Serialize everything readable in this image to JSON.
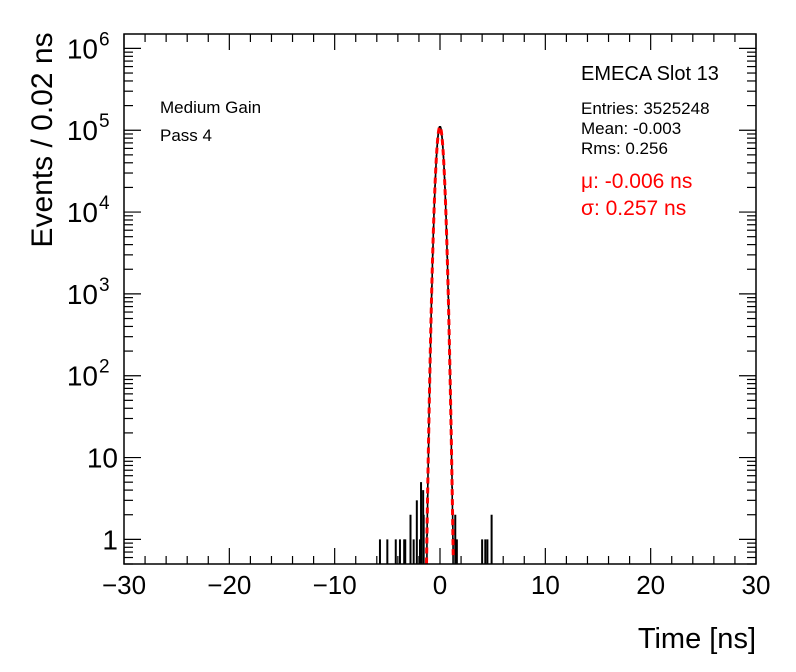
{
  "chart_data": {
    "type": "histogram",
    "title": "",
    "xlabel": "Time [ns]",
    "ylabel": "Events / 0.02 ns",
    "xlim": [
      -30,
      30
    ],
    "ylim": [
      0.5,
      1500000
    ],
    "yscale": "log",
    "bin_width": 0.02,
    "grid": false,
    "x_ticks": [
      {
        "value": -30,
        "label": "−30"
      },
      {
        "value": -20,
        "label": "−20"
      },
      {
        "value": -10,
        "label": "−10"
      },
      {
        "value": 0,
        "label": "0"
      },
      {
        "value": 10,
        "label": "10"
      },
      {
        "value": 20,
        "label": "20"
      },
      {
        "value": 30,
        "label": "30"
      }
    ],
    "y_ticks": [
      {
        "value": 1,
        "base": "1",
        "exp": ""
      },
      {
        "value": 10,
        "base": "10",
        "exp": ""
      },
      {
        "value": 100,
        "base": "10",
        "exp": "2"
      },
      {
        "value": 1000,
        "base": "10",
        "exp": "3"
      },
      {
        "value": 10000,
        "base": "10",
        "exp": "4"
      },
      {
        "value": 100000,
        "base": "10",
        "exp": "5"
      },
      {
        "value": 1000000,
        "base": "10",
        "exp": "6"
      }
    ],
    "left_annotation": [
      "Medium Gain",
      "Pass 4"
    ],
    "stats": {
      "title": "EMECA Slot 13",
      "entries": "Entries: 3525248",
      "mean": "Mean: -0.003",
      "rms": "Rms: 0.256"
    },
    "fit_text": {
      "mu": "μ: -0.006 ns",
      "sigma": "σ: 0.257 ns"
    },
    "fit": {
      "type": "gaussian",
      "mu": -0.006,
      "sigma": 0.257,
      "peak": 110000,
      "color": "#ff0000"
    },
    "histogram": {
      "color": "#000000",
      "core_mu": -0.003,
      "core_sigma": 0.256,
      "core_peak": 110000,
      "isolated_bins": [
        {
          "x": -5.7,
          "y": 1
        },
        {
          "x": -5.0,
          "y": 1
        },
        {
          "x": -4.2,
          "y": 1
        },
        {
          "x": -3.8,
          "y": 1
        },
        {
          "x": -3.4,
          "y": 1
        },
        {
          "x": -3.3,
          "y": 1
        },
        {
          "x": -2.8,
          "y": 2
        },
        {
          "x": -2.5,
          "y": 1
        },
        {
          "x": -2.2,
          "y": 3
        },
        {
          "x": -1.9,
          "y": 1
        },
        {
          "x": -1.8,
          "y": 5
        },
        {
          "x": -1.6,
          "y": 4
        },
        {
          "x": -1.55,
          "y": 2
        },
        {
          "x": 1.45,
          "y": 2
        },
        {
          "x": 1.6,
          "y": 1
        },
        {
          "x": 4.0,
          "y": 1
        },
        {
          "x": 4.3,
          "y": 1
        },
        {
          "x": 4.5,
          "y": 1
        },
        {
          "x": 4.9,
          "y": 2
        }
      ]
    }
  }
}
